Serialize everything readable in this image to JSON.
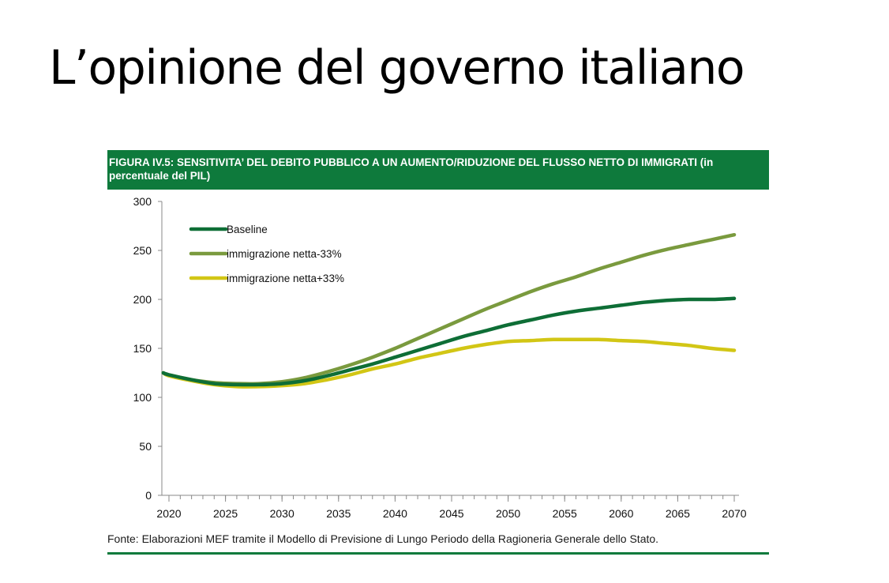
{
  "slide": {
    "title": "L’opinione del governo italiano"
  },
  "figure": {
    "header": "FIGURA IV.5: SENSITIVITA’ DEL DEBITO PUBBLICO A UN AUMENTO/RIDUZIONE DEL FLUSSO NETTO DI IMMIGRATI (in percentuale del PIL)",
    "source": "Fonte: Elaborazioni MEF tramite il Modello di Previsione di Lungo Periodo della Ragioneria Generale dello Stato."
  },
  "colors": {
    "header_bg": "#0e7a3c",
    "source_rule": "#0e7a3c",
    "axis": "#888888",
    "tick_label": "#111111"
  },
  "chart_data": {
    "type": "line",
    "title": "",
    "xlabel": "",
    "ylabel": "",
    "xlim": [
      2020,
      2070
    ],
    "ylim": [
      0,
      300
    ],
    "x_ticks": [
      2020,
      2025,
      2030,
      2035,
      2040,
      2045,
      2050,
      2055,
      2060,
      2065,
      2070
    ],
    "y_ticks": [
      0,
      50,
      100,
      150,
      200,
      250,
      300
    ],
    "grid": false,
    "legend": "top-left",
    "x": [
      2019.5,
      2020,
      2022,
      2024,
      2026,
      2028,
      2030,
      2032,
      2034,
      2036,
      2038,
      2040,
      2042,
      2044,
      2046,
      2048,
      2050,
      2052,
      2054,
      2056,
      2058,
      2060,
      2062,
      2064,
      2066,
      2068,
      2070
    ],
    "series": [
      {
        "name": "Baseline",
        "color": "#0e6e36",
        "values": [
          125,
          123,
          118,
          114,
          113,
          113,
          114,
          117,
          122,
          128,
          134,
          141,
          148,
          155,
          162,
          168,
          174,
          179,
          184,
          188,
          191,
          194,
          197,
          199,
          200,
          200,
          201
        ]
      },
      {
        "name": "immigrazione netta-33%",
        "color": "#7a9a3e",
        "values": [
          125,
          123,
          118,
          115,
          114,
          114,
          116,
          120,
          126,
          133,
          141,
          150,
          160,
          170,
          180,
          190,
          199,
          208,
          216,
          223,
          231,
          238,
          245,
          251,
          256,
          261,
          266
        ]
      },
      {
        "name": "immigrazione netta+33%",
        "color": "#d2c615",
        "values": [
          125,
          122,
          117,
          113,
          111,
          111,
          112,
          114,
          118,
          123,
          129,
          134,
          140,
          145,
          150,
          154,
          157,
          158,
          159,
          159,
          159,
          158,
          157,
          155,
          153,
          150,
          148
        ]
      }
    ]
  }
}
